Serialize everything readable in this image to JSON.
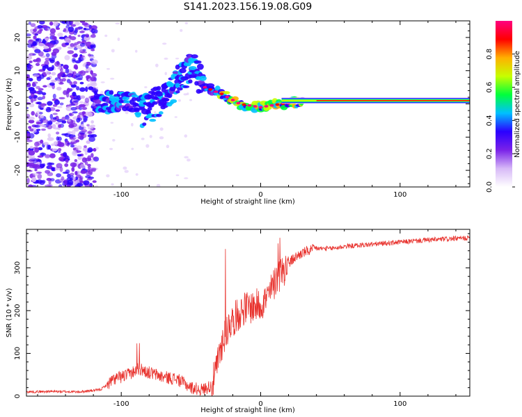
{
  "title": "S141.2023.156.19.08.G09",
  "colors": {
    "snr_line": "#e8322d",
    "colormap": [
      "#ffffff",
      "#d7b9f7",
      "#7a22e8",
      "#2b00ff",
      "#00c0ff",
      "#00ff3c",
      "#c7ff00",
      "#ffb000",
      "#ff0000",
      "#ff0080"
    ]
  },
  "chart_data": [
    {
      "type": "heatmap",
      "xlabel": "Height of straight line (km)",
      "ylabel": "Frequency (Hz)",
      "xlim": [
        -168,
        150
      ],
      "ylim": [
        -25,
        25
      ],
      "xticks": [
        -100,
        0,
        100
      ],
      "yticks": [
        -20,
        -10,
        0,
        10,
        20
      ],
      "grid": false,
      "colorbar": {
        "label": "Normalized spectral amplitude",
        "range": [
          0,
          1
        ],
        "ticks": [
          "0.0",
          "0.2",
          "0.4",
          "0.6",
          "0.8"
        ]
      },
      "ridge": [
        {
          "x": -115,
          "y": 0
        },
        {
          "x": -100,
          "y": 1
        },
        {
          "x": -85,
          "y": -1
        },
        {
          "x": -70,
          "y": 3
        },
        {
          "x": -58,
          "y": 9
        },
        {
          "x": -48,
          "y": 13
        },
        {
          "x": -40,
          "y": 5
        },
        {
          "x": -28,
          "y": 3
        },
        {
          "x": -15,
          "y": 0
        },
        {
          "x": 0,
          "y": -1
        },
        {
          "x": 15,
          "y": 0
        },
        {
          "x": 40,
          "y": 1
        },
        {
          "x": 150,
          "y": 1
        }
      ]
    },
    {
      "type": "line",
      "xlabel": "Height of straight line (km)",
      "ylabel": "SNR (10 * v/v)",
      "xlim": [
        -168,
        150
      ],
      "ylim": [
        0,
        390
      ],
      "xticks": [
        -100,
        0,
        100
      ],
      "yticks": [
        0,
        100,
        200,
        300
      ],
      "grid": false,
      "series": [
        {
          "x": [
            -168,
            -150,
            -130,
            -115,
            -105,
            -95,
            -88,
            -80,
            -70,
            -60,
            -50,
            -42,
            -35,
            -32,
            -28,
            -25,
            -22,
            -18,
            -12,
            -5,
            0,
            5,
            10,
            15,
            20,
            25,
            30,
            40,
            50,
            60,
            80,
            100,
            120,
            150
          ],
          "values": [
            10,
            11,
            10,
            15,
            40,
            50,
            65,
            55,
            45,
            40,
            20,
            15,
            25,
            60,
            120,
            150,
            170,
            185,
            205,
            210,
            215,
            230,
            265,
            290,
            310,
            325,
            335,
            345,
            345,
            350,
            355,
            360,
            365,
            370
          ]
        }
      ]
    }
  ]
}
